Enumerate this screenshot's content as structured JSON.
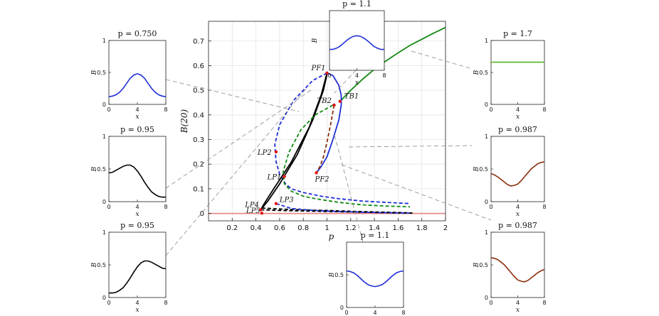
{
  "chart_data": {
    "main": {
      "type": "line",
      "xlabel": "p",
      "ylabel": "B(20)",
      "xlim": [
        0,
        2
      ],
      "ylim": [
        -0.03,
        0.78
      ],
      "xticks": [
        "0.2",
        "0.4",
        "0.6",
        "0.8",
        "1",
        "1.2",
        "1.4",
        "1.6",
        "1.8",
        "2"
      ],
      "yticks": [
        "0",
        "0.1",
        "0.2",
        "0.3",
        "0.4",
        "0.5",
        "0.6",
        "0.7"
      ],
      "grid": true,
      "series": [
        {
          "style": "solid",
          "color": "#e88a8a",
          "x": [
            0,
            2
          ],
          "y": [
            0,
            0
          ]
        },
        {
          "style": "solid",
          "color": "#138a13",
          "x": [
            1.11,
            1.2,
            1.3,
            1.4,
            1.5,
            1.6,
            1.7,
            1.8,
            1.9,
            2.0
          ],
          "y": [
            0.455,
            0.5,
            0.545,
            0.585,
            0.62,
            0.652,
            0.682,
            0.707,
            0.732,
            0.755
          ]
        },
        {
          "style": "solid",
          "color": "#1f2fd6",
          "x": [
            1.0,
            1.05,
            1.1,
            1.12,
            1.12,
            1.1,
            1.05,
            1.0,
            0.95,
            0.91
          ],
          "y": [
            0.57,
            0.56,
            0.52,
            0.48,
            0.44,
            0.38,
            0.3,
            0.23,
            0.19,
            0.165
          ]
        },
        {
          "style": "dashed",
          "color": "#1f2fd6",
          "x": [
            1.0,
            0.88,
            0.72,
            0.6,
            0.56,
            0.57,
            0.6,
            0.65,
            0.7,
            0.8,
            0.95,
            1.1,
            1.3,
            1.5,
            1.7
          ],
          "y": [
            0.57,
            0.54,
            0.46,
            0.36,
            0.28,
            0.21,
            0.16,
            0.12,
            0.1,
            0.085,
            0.07,
            0.06,
            0.05,
            0.045,
            0.04
          ]
        },
        {
          "style": "solid",
          "color": "#000000",
          "x": [
            1.0,
            0.95,
            0.85,
            0.7,
            0.55,
            0.47,
            0.44
          ],
          "y": [
            0.57,
            0.48,
            0.35,
            0.21,
            0.1,
            0.04,
            0.015
          ]
        },
        {
          "style": "solid",
          "color": "#000000",
          "x": [
            1.0,
            0.97,
            0.88,
            0.75,
            0.6,
            0.5,
            0.45
          ],
          "y": [
            0.565,
            0.5,
            0.38,
            0.24,
            0.12,
            0.05,
            0.02
          ]
        },
        {
          "style": "dashed",
          "color": "#138a13",
          "x": [
            1.05,
            0.9,
            0.78,
            0.68,
            0.63,
            0.64,
            0.7,
            0.8,
            0.9,
            1.1,
            1.3,
            1.5,
            1.7
          ],
          "y": [
            0.44,
            0.4,
            0.34,
            0.25,
            0.17,
            0.12,
            0.09,
            0.07,
            0.06,
            0.045,
            0.035,
            0.03,
            0.027
          ]
        },
        {
          "style": "dashed",
          "color": "#8b2d0a",
          "x": [
            1.06,
            1.03,
            1.0,
            0.97,
            0.94,
            0.91
          ],
          "y": [
            0.44,
            0.36,
            0.29,
            0.23,
            0.19,
            0.165
          ]
        },
        {
          "style": "dashed",
          "color": "#000000",
          "x": [
            0.44,
            0.6,
            0.8,
            1.0,
            1.2,
            1.4,
            1.6,
            1.72
          ],
          "y": [
            0.015,
            0.012,
            0.01,
            0.008,
            0.006,
            0.004,
            0.002,
            0.001
          ]
        },
        {
          "style": "dashed",
          "color": "#000000",
          "x": [
            0.45,
            0.6,
            0.8,
            1.0,
            1.2,
            1.4,
            1.6,
            1.72
          ],
          "y": [
            0.022,
            0.018,
            0.014,
            0.012,
            0.009,
            0.006,
            0.004,
            0.002
          ]
        },
        {
          "style": "dashed",
          "color": "#1f2fd6",
          "x": [
            0.57,
            0.7,
            0.9,
            1.1,
            1.3,
            1.5,
            1.7
          ],
          "y": [
            0.04,
            0.02,
            0.012,
            0.008,
            0.005,
            0.003,
            0.002
          ]
        }
      ],
      "points": [
        {
          "label": "PF1",
          "x": 1.0,
          "y": 0.57
        },
        {
          "label": "TB1",
          "x": 1.11,
          "y": 0.455
        },
        {
          "label": "TB2",
          "x": 1.06,
          "y": 0.44
        },
        {
          "label": "LP2",
          "x": 0.57,
          "y": 0.25
        },
        {
          "label": "LP1",
          "x": 0.64,
          "y": 0.15
        },
        {
          "label": "PF2",
          "x": 0.91,
          "y": 0.165
        },
        {
          "label": "LP4",
          "x": 0.44,
          "y": 0.015
        },
        {
          "label": "LP3",
          "x": 0.57,
          "y": 0.04
        },
        {
          "label": "LP5",
          "x": 0.45,
          "y": 0.001
        }
      ]
    },
    "insets": [
      {
        "id": "p0750",
        "title": "p = 0.750",
        "color": "#1f2fd6",
        "xlabel": "x",
        "ylabel": "B",
        "xlim": [
          0,
          8
        ],
        "ylim": [
          0,
          1
        ],
        "xticks": [
          "0",
          "4",
          "8"
        ],
        "yticks": [
          "0",
          "0.5",
          "1"
        ],
        "x": [
          0,
          0.5,
          1,
          1.5,
          2,
          2.5,
          3,
          3.5,
          4,
          4.5,
          5,
          5.5,
          6,
          6.5,
          7,
          7.5,
          8
        ],
        "y": [
          0.12,
          0.13,
          0.15,
          0.19,
          0.25,
          0.33,
          0.41,
          0.46,
          0.48,
          0.46,
          0.41,
          0.33,
          0.25,
          0.19,
          0.15,
          0.13,
          0.12
        ]
      },
      {
        "id": "p095a",
        "title": "p = 0.95",
        "color": "#000000",
        "xlabel": "x",
        "ylabel": "B",
        "xlim": [
          0,
          8
        ],
        "ylim": [
          0,
          1
        ],
        "xticks": [
          "0",
          "4",
          "8"
        ],
        "yticks": [
          "0",
          "0.5",
          "1"
        ],
        "x": [
          0,
          0.5,
          1,
          1.5,
          2,
          2.5,
          3,
          3.5,
          4,
          4.5,
          5,
          5.5,
          6,
          6.5,
          7,
          7.5,
          8
        ],
        "y": [
          0.44,
          0.45,
          0.48,
          0.51,
          0.54,
          0.56,
          0.56,
          0.53,
          0.47,
          0.39,
          0.3,
          0.22,
          0.15,
          0.11,
          0.08,
          0.07,
          0.07
        ]
      },
      {
        "id": "p095b",
        "title": "p = 0.95",
        "color": "#000000",
        "xlabel": "x",
        "ylabel": "B",
        "xlim": [
          0,
          8
        ],
        "ylim": [
          0,
          1
        ],
        "xticks": [
          "0",
          "4",
          "8"
        ],
        "yticks": [
          "0",
          "0.5",
          "1"
        ],
        "x": [
          0,
          0.5,
          1,
          1.5,
          2,
          2.5,
          3,
          3.5,
          4,
          4.5,
          5,
          5.5,
          6,
          6.5,
          7,
          7.5,
          8
        ],
        "y": [
          0.07,
          0.07,
          0.08,
          0.11,
          0.15,
          0.22,
          0.3,
          0.39,
          0.47,
          0.53,
          0.56,
          0.56,
          0.54,
          0.51,
          0.48,
          0.45,
          0.44
        ]
      },
      {
        "id": "p11top",
        "title": "p = 1.1",
        "color": "#1f2fd6",
        "xlabel": "x",
        "ylabel": "B",
        "xlim": [
          0,
          8
        ],
        "ylim": [
          0,
          1
        ],
        "xticks": [
          "0",
          "4",
          "8"
        ],
        "yticks": [],
        "x": [
          0,
          0.5,
          1,
          1.5,
          2,
          2.5,
          3,
          3.5,
          4,
          4.5,
          5,
          5.5,
          6,
          6.5,
          7,
          7.5,
          8
        ],
        "y": [
          0.35,
          0.35,
          0.37,
          0.4,
          0.45,
          0.5,
          0.54,
          0.57,
          0.58,
          0.57,
          0.54,
          0.5,
          0.45,
          0.4,
          0.37,
          0.35,
          0.35
        ]
      },
      {
        "id": "p11bot",
        "title": "p = 1.1",
        "color": "#1f2fd6",
        "xlabel": "x",
        "ylabel": "B",
        "xlim": [
          0,
          8
        ],
        "ylim": [
          0,
          1
        ],
        "xticks": [
          "0",
          "4",
          "8"
        ],
        "yticks": [
          "0",
          "0.5"
        ],
        "x": [
          0,
          0.5,
          1,
          1.5,
          2,
          2.5,
          3,
          3.5,
          4,
          4.5,
          5,
          5.5,
          6,
          6.5,
          7,
          7.5,
          8
        ],
        "y": [
          0.56,
          0.55,
          0.53,
          0.49,
          0.44,
          0.39,
          0.35,
          0.33,
          0.32,
          0.33,
          0.35,
          0.39,
          0.44,
          0.49,
          0.53,
          0.55,
          0.56
        ]
      },
      {
        "id": "p17",
        "title": "p = 1.7",
        "color": "#55b520",
        "xlabel": "x",
        "ylabel": "B",
        "xlim": [
          0,
          8
        ],
        "ylim": [
          0,
          1
        ],
        "xticks": [
          "0",
          "4",
          "8"
        ],
        "yticks": [
          "0",
          "0.5",
          "1"
        ],
        "x": [
          0,
          8
        ],
        "y": [
          0.66,
          0.66
        ]
      },
      {
        "id": "p0987a",
        "title": "p = 0.987",
        "color": "#8b2d0a",
        "xlabel": "x",
        "ylabel": "B",
        "xlim": [
          0,
          8
        ],
        "ylim": [
          0,
          1
        ],
        "xticks": [
          "0",
          "4",
          "8"
        ],
        "yticks": [
          "0",
          "0.5",
          "1"
        ],
        "x": [
          0,
          0.5,
          1,
          1.5,
          2,
          2.5,
          3,
          3.5,
          4,
          4.5,
          5,
          5.5,
          6,
          6.5,
          7,
          7.5,
          8
        ],
        "y": [
          0.43,
          0.41,
          0.38,
          0.34,
          0.3,
          0.26,
          0.24,
          0.25,
          0.27,
          0.32,
          0.38,
          0.44,
          0.5,
          0.54,
          0.58,
          0.6,
          0.61
        ]
      },
      {
        "id": "p0987b",
        "title": "p = 0.987",
        "color": "#8b2d0a",
        "xlabel": "x",
        "ylabel": "B",
        "xlim": [
          0,
          8
        ],
        "ylim": [
          0,
          1
        ],
        "xticks": [
          "0",
          "4",
          "8"
        ],
        "yticks": [
          "0",
          "0.5",
          "1"
        ],
        "x": [
          0,
          0.5,
          1,
          1.5,
          2,
          2.5,
          3,
          3.5,
          4,
          4.5,
          5,
          5.5,
          6,
          6.5,
          7,
          7.5,
          8
        ],
        "y": [
          0.61,
          0.6,
          0.58,
          0.54,
          0.5,
          0.44,
          0.38,
          0.32,
          0.27,
          0.25,
          0.24,
          0.26,
          0.3,
          0.34,
          0.38,
          0.41,
          0.43
        ]
      }
    ]
  }
}
